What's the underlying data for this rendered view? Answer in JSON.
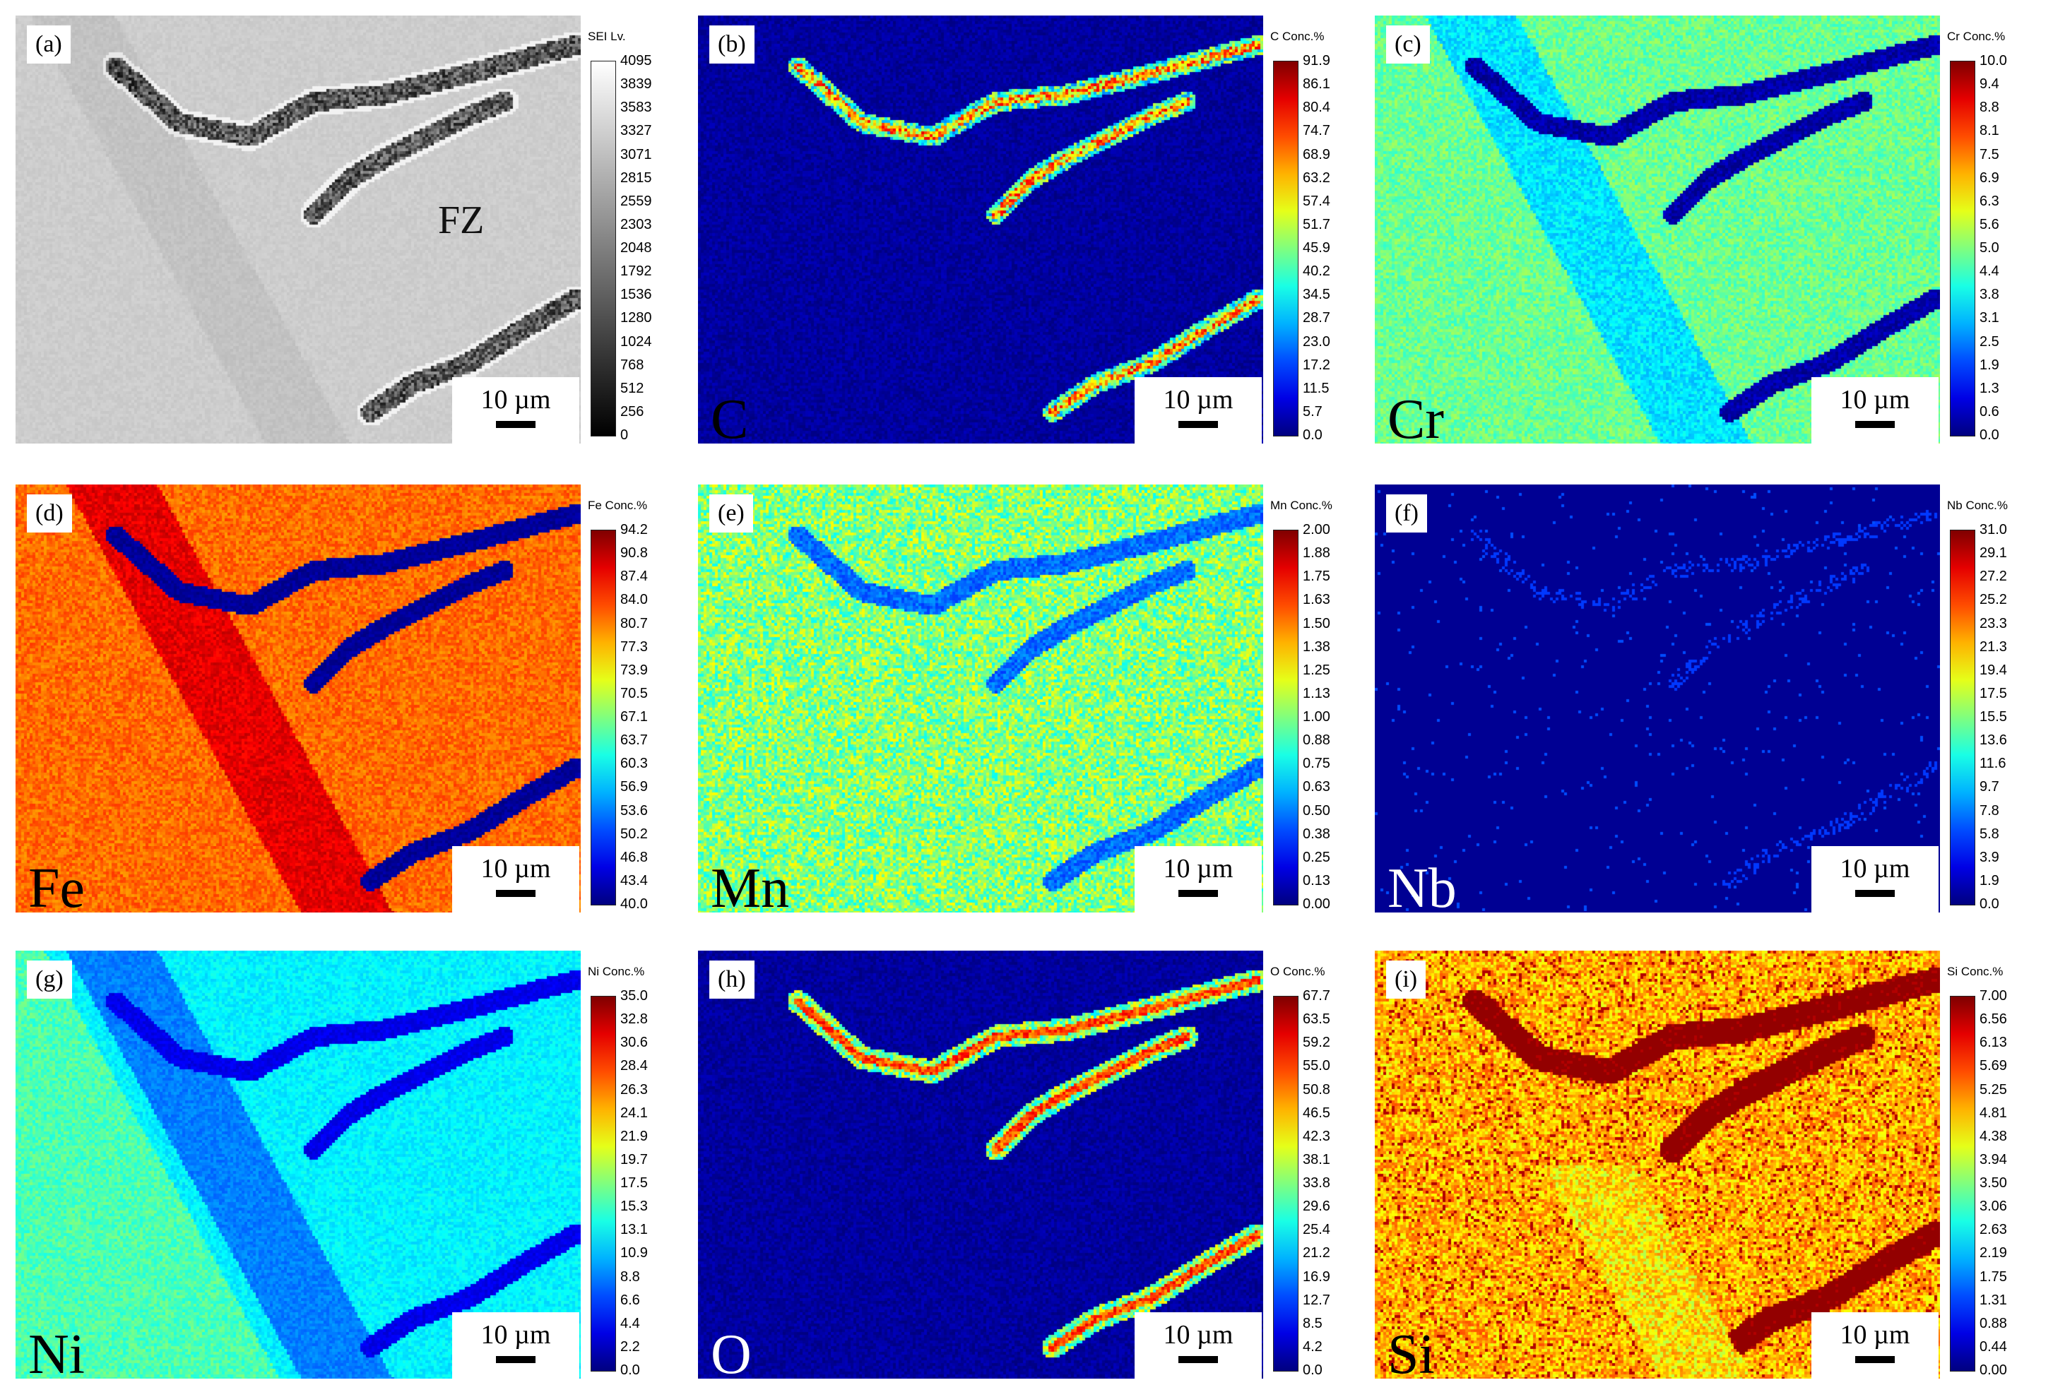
{
  "scale_bar_text": "10 µm",
  "fz_label": "FZ",
  "panels": [
    {
      "id": "a",
      "label": "(a)",
      "element": "",
      "title": "SEI  Lv.",
      "ticks": [
        "4095",
        "3839",
        "3583",
        "3327",
        "3071",
        "2815",
        "2559",
        "2303",
        "2048",
        "1792",
        "1536",
        "1280",
        "1024",
        "768",
        "512",
        "256",
        "0"
      ],
      "colormap": "gray"
    },
    {
      "id": "b",
      "label": "(b)",
      "element": "C",
      "title": "C  Conc.%",
      "ticks": [
        "91.9",
        "86.1",
        "80.4",
        "74.7",
        "68.9",
        "63.2",
        "57.4",
        "51.7",
        "45.9",
        "40.2",
        "34.5",
        "28.7",
        "23.0",
        "17.2",
        "11.5",
        "5.7",
        "0.0"
      ],
      "colormap": "jet"
    },
    {
      "id": "c",
      "label": "(c)",
      "element": "Cr",
      "title": "Cr  Conc.%",
      "ticks": [
        "10.0",
        "9.4",
        "8.8",
        "8.1",
        "7.5",
        "6.9",
        "6.3",
        "5.6",
        "5.0",
        "4.4",
        "3.8",
        "3.1",
        "2.5",
        "1.9",
        "1.3",
        "0.6",
        "0.0"
      ],
      "colormap": "jet"
    },
    {
      "id": "d",
      "label": "(d)",
      "element": "Fe",
      "title": "Fe  Conc.%",
      "ticks": [
        "94.2",
        "90.8",
        "87.4",
        "84.0",
        "80.7",
        "77.3",
        "73.9",
        "70.5",
        "67.1",
        "63.7",
        "60.3",
        "56.9",
        "53.6",
        "50.2",
        "46.8",
        "43.4",
        "40.0"
      ],
      "colormap": "jet"
    },
    {
      "id": "e",
      "label": "(e)",
      "element": "Mn",
      "title": "Mn  Conc.%",
      "ticks": [
        "2.00",
        "1.88",
        "1.75",
        "1.63",
        "1.50",
        "1.38",
        "1.25",
        "1.13",
        "1.00",
        "0.88",
        "0.75",
        "0.63",
        "0.50",
        "0.38",
        "0.25",
        "0.13",
        "0.00"
      ],
      "colormap": "jet"
    },
    {
      "id": "f",
      "label": "(f)",
      "element": "Nb",
      "title": "Nb  Conc.%",
      "ticks": [
        "31.0",
        "29.1",
        "27.2",
        "25.2",
        "23.3",
        "21.3",
        "19.4",
        "17.5",
        "15.5",
        "13.6",
        "11.6",
        "9.7",
        "7.8",
        "5.8",
        "3.9",
        "1.9",
        "0.0"
      ],
      "colormap": "jet"
    },
    {
      "id": "g",
      "label": "(g)",
      "element": "Ni",
      "title": "Ni  Conc.%",
      "ticks": [
        "35.0",
        "32.8",
        "30.6",
        "28.4",
        "26.3",
        "24.1",
        "21.9",
        "19.7",
        "17.5",
        "15.3",
        "13.1",
        "10.9",
        "8.8",
        "6.6",
        "4.4",
        "2.2",
        "0.0"
      ],
      "colormap": "jet"
    },
    {
      "id": "h",
      "label": "(h)",
      "element": "O",
      "title": "O  Conc.%",
      "ticks": [
        "67.7",
        "63.5",
        "59.2",
        "55.0",
        "50.8",
        "46.5",
        "42.3",
        "38.1",
        "33.8",
        "29.6",
        "25.4",
        "21.2",
        "16.9",
        "12.7",
        "8.5",
        "4.2",
        "0.0"
      ],
      "colormap": "jet"
    },
    {
      "id": "i",
      "label": "(i)",
      "element": "Si",
      "title": "Si  Conc.%",
      "ticks": [
        "7.00",
        "6.56",
        "6.13",
        "5.69",
        "5.25",
        "4.81",
        "4.38",
        "3.94",
        "3.50",
        "3.06",
        "2.63",
        "2.19",
        "1.75",
        "1.31",
        "0.88",
        "0.44",
        "0.00"
      ],
      "colormap": "jet"
    }
  ]
}
